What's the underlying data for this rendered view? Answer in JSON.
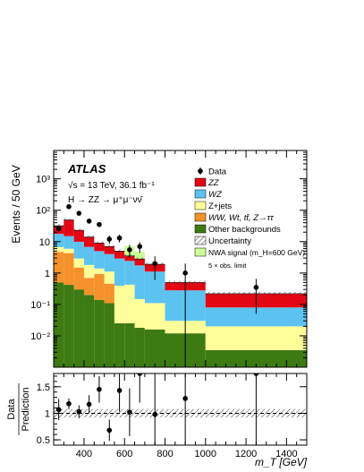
{
  "chart_data": [
    {
      "type": "bar",
      "stacked": true,
      "log_y": true,
      "experiment": "ATLAS",
      "energy_label": "√s = 13 TeV, 36.1 fb⁻¹",
      "channel_label": "H → ZZ → μ⁺μ⁻νν̄",
      "ylabel": "Events / 50 GeV",
      "xlim": [
        250,
        1500
      ],
      "ylim": [
        0.001,
        8000
      ],
      "y_ticks": [
        {
          "value": 0.01,
          "label": "10⁻²"
        },
        {
          "value": 0.1,
          "label": "10⁻¹"
        },
        {
          "value": 1,
          "label": "1"
        },
        {
          "value": 10,
          "label": "10"
        },
        {
          "value": 100,
          "label": "10²"
        },
        {
          "value": 1000,
          "label": "10³"
        }
      ],
      "bin_edges": [
        250,
        300,
        350,
        400,
        450,
        500,
        550,
        600,
        650,
        700,
        800,
        1000,
        1500
      ],
      "series": [
        {
          "name": "Other backgrounds",
          "color": "#3d7a12",
          "values": [
            0.5,
            0.42,
            0.3,
            0.2,
            0.14,
            0.11,
            0.025,
            0.025,
            0.018,
            0.016,
            0.012,
            0.0035
          ]
        },
        {
          "name": "WW, Wt, tt̄, Z→ττ",
          "color": "#f5922b",
          "values": [
            4.2,
            3.9,
            1.2,
            0.5,
            0.8,
            0.35,
            0.0,
            0.0,
            0.0,
            0.0,
            0.0,
            0.0
          ]
        },
        {
          "name": "Z+jets",
          "color": "#ffff99",
          "values": [
            2.0,
            1.6,
            1.4,
            1.1,
            0.45,
            0.65,
            0.37,
            0.4,
            0.13,
            0.094,
            0.018,
            0.0165
          ]
        },
        {
          "name": "WZ",
          "color": "#5cc3f0",
          "values": [
            11,
            9,
            7,
            5,
            3.6,
            2.9,
            2.5,
            2.0,
            1.6,
            1.0,
            0.25,
            0.06
          ]
        },
        {
          "name": "ZZ",
          "color": "#e30613",
          "values": [
            14.3,
            34.1,
            13.1,
            7.2,
            4.0,
            2.99,
            2.1,
            1.08,
            1.05,
            0.79,
            0.22,
            0.14
          ]
        }
      ],
      "signal": {
        "name": "NWA signal (m_H=600 GeV)",
        "note": "5 × obs. limit",
        "color": "#ccff99",
        "values": [
          0,
          0,
          0,
          0,
          0,
          0,
          0,
          3.8,
          2.0,
          0,
          0,
          0
        ]
      },
      "uncertainty": {
        "name": "Uncertainty",
        "fraction": 0.12
      },
      "data": {
        "name": "Data",
        "points": [
          {
            "x": 275,
            "y": 26,
            "err": 5
          },
          {
            "x": 325,
            "y": 130,
            "err": 11
          },
          {
            "x": 375,
            "y": 80,
            "err": 9
          },
          {
            "x": 425,
            "y": 45,
            "err": 7
          },
          {
            "x": 475,
            "y": 35,
            "err": 6
          },
          {
            "x": 525,
            "y": 12,
            "err": 3.5
          },
          {
            "x": 575,
            "y": 13,
            "err": 3.6
          },
          {
            "x": 625,
            "y": 5.5,
            "err": 2.3
          },
          {
            "x": 675,
            "y": 7,
            "err": 2.6
          },
          {
            "x": 750,
            "y": 2,
            "err": 1.4
          },
          {
            "x": 900,
            "y": 1,
            "err": 1.0
          },
          {
            "x": 1250,
            "y": 0.35,
            "err": 0.3
          }
        ]
      },
      "legend_position": "top-right"
    },
    {
      "type": "scatter",
      "ylabel_lines": [
        "Data",
        "Prediction"
      ],
      "xlabel": "m_T [GeV]",
      "xlim": [
        250,
        1500
      ],
      "ylim": [
        0.4,
        1.75
      ],
      "x_ticks": [
        400,
        600,
        800,
        1000,
        1200,
        1400
      ],
      "y_ticks": [
        0.5,
        1,
        1.5
      ],
      "reference_line": 1,
      "uncertainty_band": [
        0.92,
        1.08
      ],
      "points": [
        {
          "x": 275,
          "y": 1.07,
          "err_low": 0.2,
          "err_high": 0.2
        },
        {
          "x": 325,
          "y": 1.18,
          "err_low": 0.1,
          "err_high": 0.1
        },
        {
          "x": 375,
          "y": 1.03,
          "err_low": 0.12,
          "err_high": 0.12
        },
        {
          "x": 425,
          "y": 1.17,
          "err_low": 0.17,
          "err_high": 0.17
        },
        {
          "x": 475,
          "y": 1.45,
          "err_low": 0.25,
          "err_high": 0.25
        },
        {
          "x": 525,
          "y": 0.68,
          "err_low": 0.2,
          "err_high": 0.2
        },
        {
          "x": 575,
          "y": 1.43,
          "err_low": 0.4,
          "err_high": 0.4
        },
        {
          "x": 625,
          "y": 1.02,
          "err_low": 0.45,
          "err_high": 0.45
        },
        {
          "x": 675,
          "y": 1.75,
          "err_low": 0.55,
          "err_high": 0.5
        },
        {
          "x": 750,
          "y": 0.98,
          "err_low": 0.6,
          "err_high": 0.7
        },
        {
          "x": 900,
          "y": 1.28,
          "err_low": 1.0,
          "err_high": 0.5
        },
        {
          "x": 1250,
          "y": 1.75,
          "err_low": 1.5,
          "err_high": 0.5
        }
      ]
    }
  ]
}
